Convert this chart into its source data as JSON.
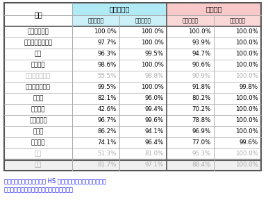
{
  "header_group1": "農林水産物",
  "header_group2": "工業製品",
  "subheader1": "即時撤廃率",
  "subheader2": "最終撤廃率",
  "subheader3": "即時撤廃率",
  "subheader4": "最終撤廃率",
  "col_header": "国名",
  "rows": [
    [
      "シンガポール",
      "100.0%",
      "100.0%",
      "100.0%",
      "100.0%",
      false
    ],
    [
      "ニュージーランド",
      "97.7%",
      "100.0%",
      "93.9%",
      "100.0%",
      false
    ],
    [
      "チリ",
      "96.3%",
      "99.5%",
      "94.7%",
      "100.0%",
      false
    ],
    [
      "ブルネイ",
      "98.6%",
      "100.0%",
      "90.6%",
      "100.0%",
      false
    ],
    [
      "アメリカ合衆国",
      "55.5%",
      "98.8%",
      "90.9%",
      "100.0%",
      true
    ],
    [
      "オーストラリア",
      "99.5%",
      "100.0%",
      "91.8%",
      "99.8%",
      false
    ],
    [
      "ペルー",
      "82.1%",
      "96.0%",
      "80.2%",
      "100.0%",
      false
    ],
    [
      "ベトナム",
      "42.6%",
      "99.4%",
      "70.2%",
      "100.0%",
      false
    ],
    [
      "マレーシア",
      "96.7%",
      "99.6%",
      "78.8%",
      "100.0%",
      false
    ],
    [
      "カナダ",
      "86.2%",
      "94.1%",
      "96.9%",
      "100.0%",
      false
    ],
    [
      "メキシコ",
      "74.1%",
      "96.4%",
      "77.0%",
      "99.6%",
      false
    ],
    [
      "日本",
      "51.3%",
      "81.0%",
      "95.3%",
      "100.0%",
      true
    ],
    [
      "平均",
      "81.7%",
      "97.1%",
      "88.4%",
      "100.0%",
      true
    ]
  ],
  "note_line1": "注：農林水産物の撤廃率は HS コードのライン数をベースに、",
  "note_line2": "　工業製品の撤廃率は品目数をベースに算出",
  "color_agri_header": "#b0eaf5",
  "color_industry_header": "#f9c8c8",
  "color_agri_sub": "#ccf0f8",
  "color_industry_sub": "#fbd8d8",
  "color_white": "#ffffff",
  "color_avg_bg": "#f0f0f0",
  "color_gray_text": "#aaaaaa",
  "color_black": "#000000",
  "color_border_light": "#aaaaaa",
  "color_border_dark": "#555555",
  "color_note_text": "#1a1aff"
}
